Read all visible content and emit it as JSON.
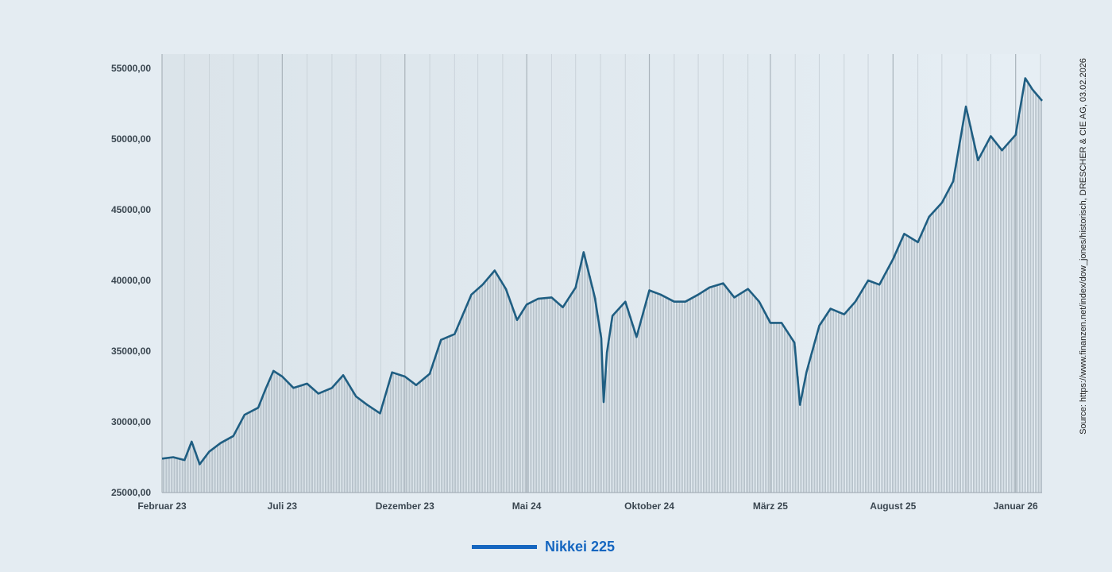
{
  "source": "Source: https://www.finanzen.net/index/dow_jones/historisch, DRESCHER & CIE AG, 03.02.2026",
  "legend_label": "Nikkei 225",
  "colors": {
    "line": "#1f5e82",
    "fill": "#b9c4cc",
    "legend": "#1566c0",
    "background": "#e4ecf2"
  },
  "chart_data": {
    "type": "area",
    "title": "",
    "xlabel": "",
    "ylabel": "",
    "ylim": [
      25000,
      55000
    ],
    "yticks": [
      "25000,00",
      "30000,00",
      "35000,00",
      "40000,00",
      "45000,00",
      "50000,00",
      "55000,00"
    ],
    "xticks": [
      {
        "label": "Februar 23",
        "date": "2023-02-01"
      },
      {
        "label": "Juli 23",
        "date": "2023-07-01"
      },
      {
        "label": "Dezember 23",
        "date": "2023-12-01"
      },
      {
        "label": "Mai 24",
        "date": "2024-05-01"
      },
      {
        "label": "Oktober 24",
        "date": "2024-10-01"
      },
      {
        "label": "März 25",
        "date": "2025-03-01"
      },
      {
        "label": "August 25",
        "date": "2025-08-01"
      },
      {
        "label": "Januar 26",
        "date": "2026-01-01"
      }
    ],
    "grid": {
      "vertical": true,
      "horizontal": false
    },
    "legend": "bottom-center",
    "series": [
      {
        "name": "Nikkei 225",
        "x": [
          "2023-02-01",
          "2023-02-15",
          "2023-03-01",
          "2023-03-10",
          "2023-03-20",
          "2023-04-01",
          "2023-04-15",
          "2023-05-01",
          "2023-05-15",
          "2023-06-01",
          "2023-06-10",
          "2023-06-20",
          "2023-07-01",
          "2023-07-15",
          "2023-08-01",
          "2023-08-15",
          "2023-09-01",
          "2023-09-15",
          "2023-10-01",
          "2023-10-15",
          "2023-10-31",
          "2023-11-15",
          "2023-12-01",
          "2023-12-15",
          "2024-01-01",
          "2024-01-15",
          "2024-02-01",
          "2024-02-22",
          "2024-03-07",
          "2024-03-22",
          "2024-04-05",
          "2024-04-19",
          "2024-05-01",
          "2024-05-15",
          "2024-06-01",
          "2024-06-15",
          "2024-07-01",
          "2024-07-11",
          "2024-07-25",
          "2024-08-02",
          "2024-08-05",
          "2024-08-09",
          "2024-08-16",
          "2024-09-01",
          "2024-09-15",
          "2024-10-01",
          "2024-10-15",
          "2024-11-01",
          "2024-11-15",
          "2024-12-01",
          "2024-12-15",
          "2025-01-01",
          "2025-01-15",
          "2025-02-01",
          "2025-02-15",
          "2025-03-01",
          "2025-03-15",
          "2025-03-31",
          "2025-04-07",
          "2025-04-15",
          "2025-05-01",
          "2025-05-15",
          "2025-06-01",
          "2025-06-15",
          "2025-07-01",
          "2025-07-15",
          "2025-08-01",
          "2025-08-15",
          "2025-09-01",
          "2025-09-15",
          "2025-10-01",
          "2025-10-15",
          "2025-10-31",
          "2025-11-15",
          "2025-12-01",
          "2025-12-15",
          "2026-01-01",
          "2026-01-13",
          "2026-01-22",
          "2026-02-03"
        ],
        "values": [
          27400,
          27500,
          27300,
          28600,
          27000,
          27900,
          28500,
          29000,
          30500,
          31000,
          32300,
          33600,
          33200,
          32400,
          32700,
          32000,
          32400,
          33300,
          31800,
          31200,
          30600,
          33500,
          33200,
          32600,
          33400,
          35800,
          36200,
          39000,
          39700,
          40700,
          39400,
          37200,
          38300,
          38700,
          38800,
          38100,
          39500,
          42000,
          38800,
          35900,
          31400,
          34900,
          37500,
          38500,
          36000,
          39300,
          39000,
          38500,
          38500,
          39000,
          39500,
          39800,
          38800,
          39400,
          38500,
          37000,
          37000,
          35600,
          31200,
          33500,
          36800,
          38000,
          37600,
          38500,
          40000,
          39700,
          41500,
          43300,
          42700,
          44500,
          45500,
          47000,
          52300,
          48500,
          50200,
          49200,
          50300,
          54300,
          53500,
          52700
        ]
      }
    ]
  }
}
